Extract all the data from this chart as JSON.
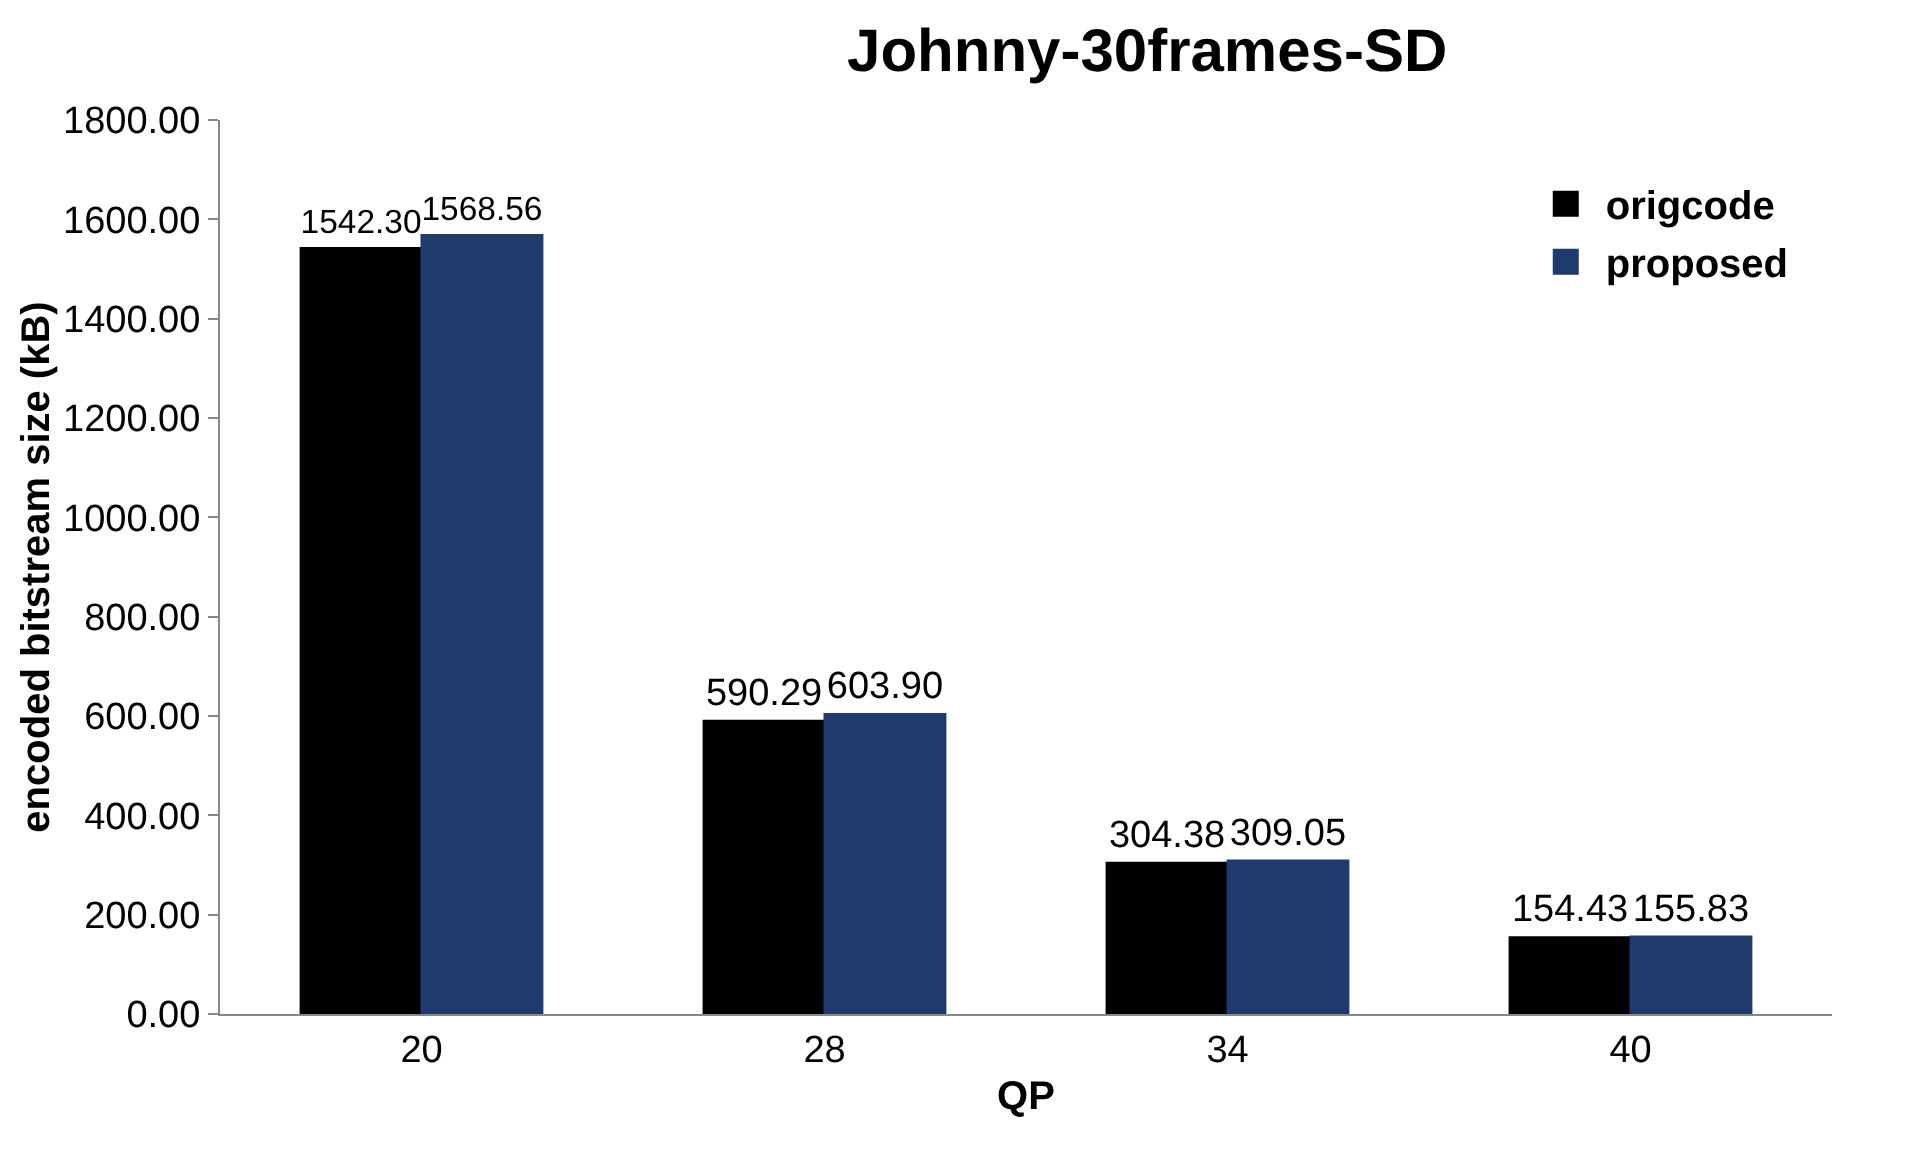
{
  "chart_data": {
    "type": "bar",
    "title": "Johnny-30frames-SD",
    "xlabel": "QP",
    "ylabel": "encoded bitstream size (kB)",
    "categories": [
      "20",
      "28",
      "34",
      "40"
    ],
    "series": [
      {
        "name": "origcode",
        "color": "#000000",
        "values": [
          1542.3,
          590.29,
          304.38,
          154.43
        ],
        "value_labels": [
          "1542.30",
          "590.29",
          "304.38",
          "154.43"
        ]
      },
      {
        "name": "proposed",
        "color": "#1f3b6e",
        "values": [
          1568.56,
          603.9,
          309.05,
          155.83
        ],
        "value_labels": [
          "1568.56",
          "603.90",
          "309.05",
          "155.83"
        ]
      }
    ],
    "ylim": [
      0,
      1800
    ],
    "yticks": [
      {
        "value": 0,
        "label": "0.00"
      },
      {
        "value": 200,
        "label": "200.00"
      },
      {
        "value": 400,
        "label": "400.00"
      },
      {
        "value": 600,
        "label": "600.00"
      },
      {
        "value": 800,
        "label": "800.00"
      },
      {
        "value": 1000,
        "label": "1000.00"
      },
      {
        "value": 1200,
        "label": "1200.00"
      },
      {
        "value": 1400,
        "label": "1400.00"
      },
      {
        "value": 1600,
        "label": "1600.00"
      },
      {
        "value": 1800,
        "label": "1800.00"
      }
    ],
    "legend": "top right",
    "grid": false
  }
}
